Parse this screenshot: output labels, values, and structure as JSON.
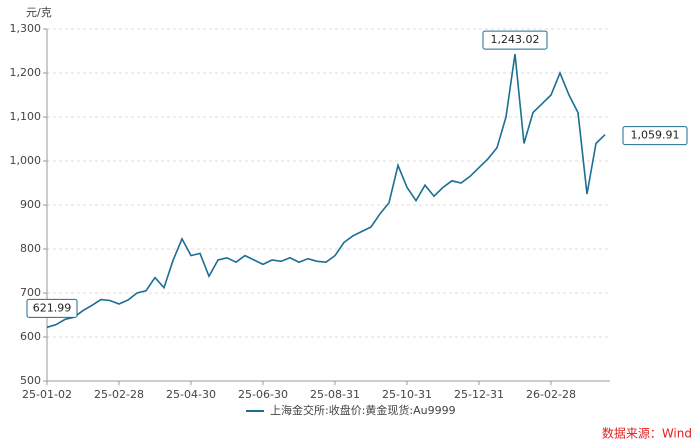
{
  "chart_data": {
    "type": "line",
    "unit": "元/克",
    "source": "数据来源：Wind",
    "categories": [
      "25-01-02",
      null,
      null,
      null,
      null,
      null,
      null,
      null,
      "25-02-28",
      null,
      null,
      null,
      null,
      null,
      null,
      null,
      "25-04-30",
      null,
      null,
      null,
      null,
      null,
      null,
      null,
      "25-06-30",
      null,
      null,
      null,
      null,
      null,
      null,
      null,
      "25-08-31",
      null,
      null,
      null,
      null,
      null,
      null,
      null,
      "25-10-31",
      null,
      null,
      null,
      null,
      null,
      null,
      null,
      "25-12-31",
      null,
      null,
      null,
      null,
      null,
      null,
      null,
      "26-02-28",
      null,
      null,
      null,
      null,
      null,
      null
    ],
    "series": [
      {
        "name": "上海金交所:收盘价:黄金现货:Au9999",
        "color": "#1b6e94",
        "values": [
          621.99,
          628,
          640,
          645,
          660,
          672,
          685,
          683,
          675,
          684,
          700,
          705,
          735,
          712,
          774,
          823,
          785,
          790,
          738,
          775,
          780,
          770,
          785,
          775,
          765,
          775,
          772,
          780,
          770,
          778,
          772,
          770,
          785,
          815,
          830,
          840,
          850,
          880,
          905,
          990,
          940,
          910,
          945,
          920,
          940,
          955,
          950,
          965,
          985,
          1005,
          1030,
          1100,
          1243.02,
          1040,
          1110,
          1130,
          1150,
          1200,
          1150,
          1110,
          925,
          1040,
          1059.91
        ],
        "value_labels": [
          "621.99",
          null,
          null,
          null,
          null,
          null,
          null,
          null,
          null,
          null,
          null,
          null,
          null,
          null,
          null,
          null,
          null,
          null,
          null,
          null,
          null,
          null,
          null,
          null,
          null,
          null,
          null,
          null,
          null,
          null,
          null,
          null,
          null,
          null,
          null,
          null,
          null,
          null,
          null,
          null,
          null,
          null,
          null,
          null,
          null,
          null,
          null,
          null,
          null,
          null,
          null,
          null,
          "1,243.02",
          null,
          null,
          null,
          null,
          null,
          null,
          null,
          null,
          null,
          "1,059.91"
        ]
      }
    ],
    "ylim": [
      500,
      1300
    ],
    "yticks": [
      500,
      600,
      700,
      800,
      900,
      {
        "value": 1000,
        "label": "1,000"
      },
      {
        "value": 1100,
        "label": "1,100"
      },
      {
        "value": 1200,
        "label": "1,200"
      },
      {
        "value": 1300,
        "label": "1,300"
      }
    ],
    "grid": true
  }
}
